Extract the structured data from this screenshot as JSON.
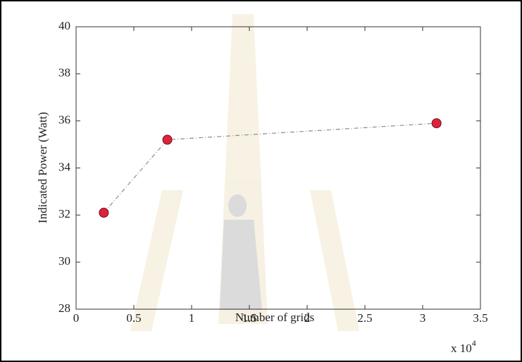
{
  "chart_data": {
    "type": "line",
    "x_label": "Number of grids",
    "y_label": "Indicated Power (Watt)",
    "x_multiplier_base": "x 10",
    "x_multiplier_exponent": "4",
    "x": [
      0.24,
      0.79,
      3.12
    ],
    "series": [
      {
        "color": "#e0233a",
        "line_color": "#8c8c8c",
        "values": [
          32.1,
          35.2,
          35.9
        ]
      }
    ],
    "xlim": [
      0,
      3.5
    ],
    "xticks": [
      0,
      0.5,
      1,
      1.5,
      2,
      2.5,
      3,
      3.5
    ],
    "ylim": [
      28,
      40
    ],
    "yticks": [
      28,
      30,
      32,
      34,
      36,
      38,
      40
    ],
    "grid": false
  }
}
